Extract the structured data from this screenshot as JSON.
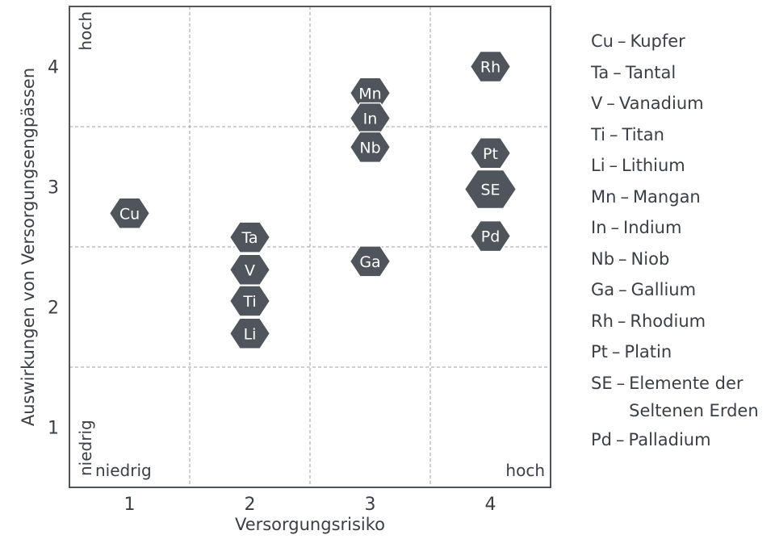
{
  "chart_data": {
    "type": "scatter",
    "xlabel": "Versorgungsrisiko",
    "ylabel": "Auswirkungen von Versorgungsengpässen",
    "xlim": [
      0.5,
      4.5
    ],
    "ylim": [
      0.5,
      4.5
    ],
    "xticks": [
      "1",
      "2",
      "3",
      "4"
    ],
    "yticks": [
      "1",
      "2",
      "3",
      "4"
    ],
    "grid": true,
    "corner_labels": {
      "x_low": "niedrig",
      "x_high": "hoch",
      "y_low": "niedrig",
      "y_high": "hoch"
    },
    "points": [
      {
        "label": "Cu",
        "x": 1.0,
        "y": 2.78,
        "size": "normal"
      },
      {
        "label": "Ta",
        "x": 2.0,
        "y": 2.58,
        "size": "normal"
      },
      {
        "label": "V",
        "x": 2.0,
        "y": 2.31,
        "size": "normal"
      },
      {
        "label": "Ti",
        "x": 2.0,
        "y": 2.05,
        "size": "normal"
      },
      {
        "label": "Li",
        "x": 2.0,
        "y": 1.78,
        "size": "normal"
      },
      {
        "label": "Mn",
        "x": 3.0,
        "y": 3.78,
        "size": "normal"
      },
      {
        "label": "In",
        "x": 3.0,
        "y": 3.57,
        "size": "normal"
      },
      {
        "label": "Nb",
        "x": 3.0,
        "y": 3.33,
        "size": "normal"
      },
      {
        "label": "Ga",
        "x": 3.0,
        "y": 2.38,
        "size": "normal"
      },
      {
        "label": "Rh",
        "x": 4.0,
        "y": 4.0,
        "size": "normal"
      },
      {
        "label": "Pt",
        "x": 4.0,
        "y": 3.28,
        "size": "normal"
      },
      {
        "label": "SE",
        "x": 4.0,
        "y": 2.98,
        "size": "large"
      },
      {
        "label": "Pd",
        "x": 4.0,
        "y": 2.59,
        "size": "normal"
      }
    ],
    "legend": [
      {
        "abbr": "Cu",
        "name": "Kupfer"
      },
      {
        "abbr": "Ta",
        "name": "Tantal"
      },
      {
        "abbr": "V",
        "name": "Vanadium"
      },
      {
        "abbr": "Ti",
        "name": "Titan"
      },
      {
        "abbr": "Li",
        "name": "Lithium"
      },
      {
        "abbr": "Mn",
        "name": "Mangan"
      },
      {
        "abbr": "In",
        "name": "Indium"
      },
      {
        "abbr": "Nb",
        "name": "Niob"
      },
      {
        "abbr": "Ga",
        "name": "Gallium"
      },
      {
        "abbr": "Rh",
        "name": "Rhodium"
      },
      {
        "abbr": "Pt",
        "name": "Platin"
      },
      {
        "abbr": "SE",
        "name": "Elemente der Seltenen Erden"
      },
      {
        "abbr": "Pd",
        "name": "Palladium"
      }
    ],
    "legend_separator": "–",
    "colors": {
      "marker": "#50555c",
      "marker_text": "#ffffff",
      "frame": "#50555c",
      "grid": "#9a9ea3",
      "text": "#3a3f45"
    }
  }
}
